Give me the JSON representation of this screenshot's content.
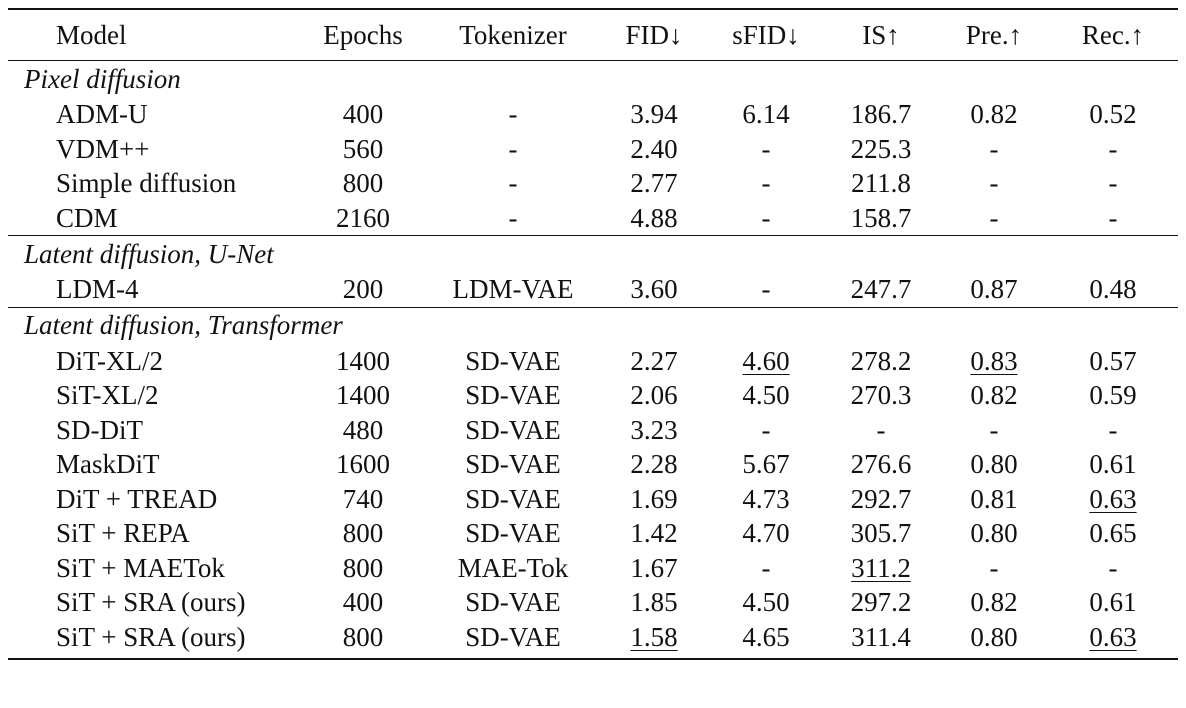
{
  "columns": [
    "Model",
    "Epochs",
    "Tokenizer",
    "FID↓",
    "sFID↓",
    "IS↑",
    "Pre.↑",
    "Rec.↑"
  ],
  "sections": [
    {
      "title": "Pixel diffusion",
      "rows": [
        {
          "model": "ADM-U",
          "epochs": "400",
          "tokenizer": "-",
          "fid": "3.94",
          "sfid": "6.14",
          "is": "186.7",
          "pre": "0.82",
          "rec": "0.52"
        },
        {
          "model": "VDM++",
          "epochs": "560",
          "tokenizer": "-",
          "fid": "2.40",
          "sfid": "-",
          "is": "225.3",
          "pre": "-",
          "rec": "-"
        },
        {
          "model": "Simple diffusion",
          "epochs": "800",
          "tokenizer": "-",
          "fid": "2.77",
          "sfid": "-",
          "is": "211.8",
          "pre": "-",
          "rec": "-"
        },
        {
          "model": "CDM",
          "epochs": "2160",
          "tokenizer": "-",
          "fid": "4.88",
          "sfid": "-",
          "is": "158.7",
          "pre": "-",
          "rec": "-"
        }
      ]
    },
    {
      "title": "Latent diffusion, U-Net",
      "rows": [
        {
          "model": "LDM-4",
          "epochs": "200",
          "tokenizer": "LDM-VAE",
          "fid": "3.60",
          "sfid": "-",
          "is": "247.7",
          "pre": "0.87",
          "rec": "0.48"
        }
      ]
    },
    {
      "title": "Latent diffusion, Transformer",
      "rows": [
        {
          "model": "DiT-XL/2",
          "epochs": "1400",
          "tokenizer": "SD-VAE",
          "fid": "2.27",
          "sfid": "4.60",
          "is": "278.2",
          "pre": "0.83",
          "rec": "0.57"
        },
        {
          "model": "SiT-XL/2",
          "epochs": "1400",
          "tokenizer": "SD-VAE",
          "fid": "2.06",
          "sfid": "4.50",
          "is": "270.3",
          "pre": "0.82",
          "rec": "0.59"
        },
        {
          "model": "SD-DiT",
          "epochs": "480",
          "tokenizer": "SD-VAE",
          "fid": "3.23",
          "sfid": "-",
          "is": "-",
          "pre": "-",
          "rec": "-"
        },
        {
          "model": "MaskDiT",
          "epochs": "1600",
          "tokenizer": "SD-VAE",
          "fid": "2.28",
          "sfid": "5.67",
          "is": "276.6",
          "pre": "0.80",
          "rec": "0.61"
        },
        {
          "model": "DiT + TREAD",
          "epochs": "740",
          "tokenizer": "SD-VAE",
          "fid": "1.69",
          "sfid": "4.73",
          "is": "292.7",
          "pre": "0.81",
          "rec": "0.63"
        },
        {
          "model": "SiT + REPA",
          "epochs": "800",
          "tokenizer": "SD-VAE",
          "fid": "1.42",
          "sfid": "4.70",
          "is": "305.7",
          "pre": "0.80",
          "rec": "0.65"
        },
        {
          "model": "SiT + MAETok",
          "epochs": "800",
          "tokenizer": "MAE-Tok",
          "fid": "1.67",
          "sfid": "-",
          "is": "311.2",
          "pre": "-",
          "rec": "-"
        },
        {
          "model": "SiT + SRA (ours)",
          "epochs": "400",
          "tokenizer": "SD-VAE",
          "fid": "1.85",
          "sfid": "4.50",
          "is": "297.2",
          "pre": "0.82",
          "rec": "0.61"
        },
        {
          "model": "SiT + SRA (ours)",
          "epochs": "800",
          "tokenizer": "SD-VAE",
          "fid": "1.58",
          "sfid": "4.65",
          "is": "311.4",
          "pre": "0.80",
          "rec": "0.63"
        }
      ]
    }
  ]
}
